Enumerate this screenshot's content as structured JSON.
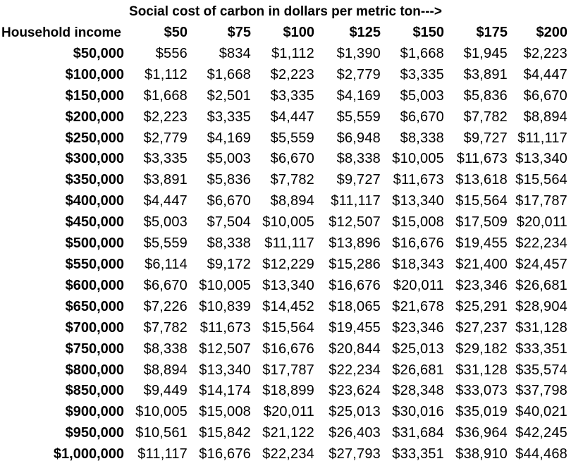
{
  "chart_data": {
    "type": "table",
    "title": "Social cost of carbon in dollars per metric ton--->",
    "row_header_label": "Household income",
    "columns": [
      "$50",
      "$75",
      "$100",
      "$125",
      "$150",
      "$175",
      "$200"
    ],
    "rows": [
      {
        "income": "$50,000",
        "values": [
          "$556",
          "$834",
          "$1,112",
          "$1,390",
          "$1,668",
          "$1,945",
          "$2,223"
        ]
      },
      {
        "income": "$100,000",
        "values": [
          "$1,112",
          "$1,668",
          "$2,223",
          "$2,779",
          "$3,335",
          "$3,891",
          "$4,447"
        ]
      },
      {
        "income": "$150,000",
        "values": [
          "$1,668",
          "$2,501",
          "$3,335",
          "$4,169",
          "$5,003",
          "$5,836",
          "$6,670"
        ]
      },
      {
        "income": "$200,000",
        "values": [
          "$2,223",
          "$3,335",
          "$4,447",
          "$5,559",
          "$6,670",
          "$7,782",
          "$8,894"
        ]
      },
      {
        "income": "$250,000",
        "values": [
          "$2,779",
          "$4,169",
          "$5,559",
          "$6,948",
          "$8,338",
          "$9,727",
          "$11,117"
        ]
      },
      {
        "income": "$300,000",
        "values": [
          "$3,335",
          "$5,003",
          "$6,670",
          "$8,338",
          "$10,005",
          "$11,673",
          "$13,340"
        ]
      },
      {
        "income": "$350,000",
        "values": [
          "$3,891",
          "$5,836",
          "$7,782",
          "$9,727",
          "$11,673",
          "$13,618",
          "$15,564"
        ]
      },
      {
        "income": "$400,000",
        "values": [
          "$4,447",
          "$6,670",
          "$8,894",
          "$11,117",
          "$13,340",
          "$15,564",
          "$17,787"
        ]
      },
      {
        "income": "$450,000",
        "values": [
          "$5,003",
          "$7,504",
          "$10,005",
          "$12,507",
          "$15,008",
          "$17,509",
          "$20,011"
        ]
      },
      {
        "income": "$500,000",
        "values": [
          "$5,559",
          "$8,338",
          "$11,117",
          "$13,896",
          "$16,676",
          "$19,455",
          "$22,234"
        ]
      },
      {
        "income": "$550,000",
        "values": [
          "$6,114",
          "$9,172",
          "$12,229",
          "$15,286",
          "$18,343",
          "$21,400",
          "$24,457"
        ]
      },
      {
        "income": "$600,000",
        "values": [
          "$6,670",
          "$10,005",
          "$13,340",
          "$16,676",
          "$20,011",
          "$23,346",
          "$26,681"
        ]
      },
      {
        "income": "$650,000",
        "values": [
          "$7,226",
          "$10,839",
          "$14,452",
          "$18,065",
          "$21,678",
          "$25,291",
          "$28,904"
        ]
      },
      {
        "income": "$700,000",
        "values": [
          "$7,782",
          "$11,673",
          "$15,564",
          "$19,455",
          "$23,346",
          "$27,237",
          "$31,128"
        ]
      },
      {
        "income": "$750,000",
        "values": [
          "$8,338",
          "$12,507",
          "$16,676",
          "$20,844",
          "$25,013",
          "$29,182",
          "$33,351"
        ]
      },
      {
        "income": "$800,000",
        "values": [
          "$8,894",
          "$13,340",
          "$17,787",
          "$22,234",
          "$26,681",
          "$31,128",
          "$35,574"
        ]
      },
      {
        "income": "$850,000",
        "values": [
          "$9,449",
          "$14,174",
          "$18,899",
          "$23,624",
          "$28,348",
          "$33,073",
          "$37,798"
        ]
      },
      {
        "income": "$900,000",
        "values": [
          "$10,005",
          "$15,008",
          "$20,011",
          "$25,013",
          "$30,016",
          "$35,019",
          "$40,021"
        ]
      },
      {
        "income": "$950,000",
        "values": [
          "$10,561",
          "$15,842",
          "$21,122",
          "$26,403",
          "$31,684",
          "$36,964",
          "$42,245"
        ]
      },
      {
        "income": "$1,000,000",
        "values": [
          "$11,117",
          "$16,676",
          "$22,234",
          "$27,793",
          "$33,351",
          "$38,910",
          "$44,468"
        ]
      }
    ]
  }
}
